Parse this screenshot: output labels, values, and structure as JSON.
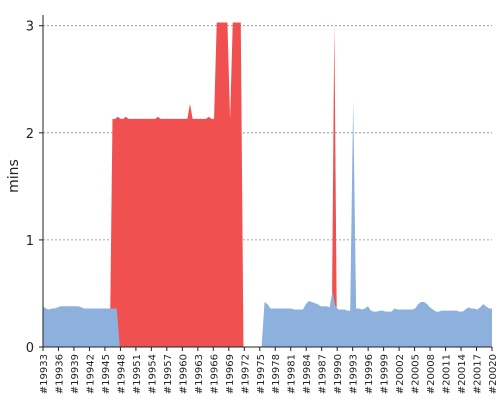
{
  "chart_data": {
    "type": "area",
    "title": "",
    "xlabel": "",
    "ylabel": "mins",
    "ylim": [
      0,
      3.1
    ],
    "yticks": [
      0,
      1,
      2,
      3
    ],
    "grid": "horizontal-dashed",
    "x_tick_labels": [
      "#19933",
      "#19936",
      "#19939",
      "#19942",
      "#19945",
      "#19948",
      "#19951",
      "#19954",
      "#19957",
      "#19960",
      "#19963",
      "#19966",
      "#19969",
      "#19972",
      "#19975",
      "#19978",
      "#19981",
      "#19984",
      "#19987",
      "#19990",
      "#19993",
      "#19996",
      "#19999",
      "#20002",
      "#20005",
      "#20008",
      "#20011",
      "#20014",
      "#20017",
      "#20020"
    ],
    "series": [
      {
        "color": "#f05050",
        "values": [
          0,
          0,
          0,
          0,
          0,
          0,
          0,
          0,
          0,
          0,
          0,
          0,
          0,
          0,
          0,
          0,
          0,
          0,
          0,
          0,
          0,
          0,
          0,
          0,
          0,
          0,
          2.13,
          2.13,
          2.15,
          2.13,
          2.13,
          2.15,
          2.13,
          2.13,
          2.13,
          2.13,
          2.13,
          2.13,
          2.13,
          2.13,
          2.13,
          2.13,
          2.13,
          2.15,
          2.13,
          2.13,
          2.13,
          2.13,
          2.13,
          2.13,
          2.13,
          2.13,
          2.13,
          2.13,
          2.13,
          2.27,
          2.13,
          2.13,
          2.13,
          2.13,
          2.13,
          2.13,
          2.15,
          2.13,
          2.13,
          3.03,
          3.03,
          3.03,
          3.03,
          3.03,
          2.13,
          3.03,
          3.03,
          3.03,
          3.03,
          0,
          0,
          0,
          0,
          0,
          0,
          0,
          0,
          0,
          0,
          0,
          0,
          0,
          0,
          0,
          0,
          0,
          0,
          0,
          0,
          0,
          0,
          0,
          0,
          0,
          0,
          0,
          0,
          0,
          0,
          0,
          0,
          0,
          0,
          3.03,
          0,
          0,
          0,
          0,
          0,
          0,
          0,
          0,
          0,
          0,
          0,
          0,
          0,
          0,
          0,
          0,
          0,
          0,
          0,
          0,
          0,
          0,
          0,
          0,
          0,
          0,
          0,
          0,
          0,
          0,
          0,
          0,
          0,
          0,
          0,
          0,
          0,
          0,
          0,
          0,
          0,
          0,
          0,
          0,
          0,
          0,
          0,
          0,
          0,
          0,
          0,
          0,
          0,
          0,
          0,
          0,
          0,
          0,
          0
        ]
      },
      {
        "color": "#8eb0dc",
        "values": [
          0.38,
          0.36,
          0.35,
          0.36,
          0.36,
          0.37,
          0.38,
          0.38,
          0.38,
          0.38,
          0.38,
          0.38,
          0.38,
          0.37,
          0.36,
          0.36,
          0.36,
          0.36,
          0.36,
          0.36,
          0.36,
          0.36,
          0.36,
          0.36,
          0.36,
          0.36,
          0,
          0,
          0,
          0,
          0,
          0,
          0,
          0,
          0,
          0,
          0,
          0,
          0,
          0,
          0,
          0,
          0,
          0,
          0,
          0,
          0,
          0,
          0,
          0,
          0,
          0,
          0,
          0,
          0,
          0,
          0,
          0,
          0,
          0,
          0,
          0,
          0,
          0,
          0,
          0,
          0,
          0,
          0,
          0,
          0,
          0,
          0,
          0,
          0,
          0.42,
          0.4,
          0.36,
          0.36,
          0.36,
          0.36,
          0.36,
          0.36,
          0.36,
          0.36,
          0.35,
          0.35,
          0.35,
          0.35,
          0.4,
          0.43,
          0.42,
          0.41,
          0.4,
          0.38,
          0.38,
          0.38,
          0.37,
          0.52,
          0.38,
          0.35,
          0.35,
          0.35,
          0.34,
          0.34,
          2.3,
          0.36,
          0.36,
          0.35,
          0.36,
          0.38,
          0.34,
          0.33,
          0.33,
          0.34,
          0.34,
          0.33,
          0.33,
          0.33,
          0.36,
          0.35,
          0.35,
          0.35,
          0.35,
          0.35,
          0.35,
          0.36,
          0.4,
          0.42,
          0.42,
          0.4,
          0.37,
          0.35,
          0.33,
          0.33,
          0.34,
          0.34,
          0.34,
          0.34,
          0.34,
          0.34,
          0.33,
          0.33,
          0.35,
          0.37,
          0.36,
          0.36,
          0.35,
          0.37,
          0.4,
          0.38,
          0.36,
          0.36
        ]
      }
    ]
  }
}
